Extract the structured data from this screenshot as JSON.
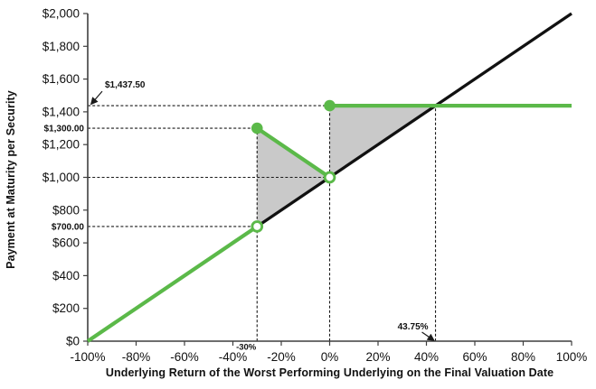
{
  "chart_data": {
    "type": "line",
    "xlabel": "Underlying Return of the Worst Performing Underlying on the Final Valuation Date",
    "ylabel": "Payment at Maturity per Security",
    "xlim": [
      -100,
      100
    ],
    "ylim": [
      0,
      2000
    ],
    "grid": false,
    "legend": "none",
    "colors": {
      "payoff_green": "#5BB949",
      "reference_black": "#111111",
      "shaded_gray": "#C9C9C9",
      "axis": "#3f3f3f",
      "dashed": "#1a1a1a",
      "text": "#111111"
    },
    "x_ticks": [
      {
        "v": -100,
        "label": "-100%"
      },
      {
        "v": -80,
        "label": "-80%"
      },
      {
        "v": -60,
        "label": "-60%"
      },
      {
        "v": -40,
        "label": "-40%"
      },
      {
        "v": -20,
        "label": "-20%"
      },
      {
        "v": 0,
        "label": "0%"
      },
      {
        "v": 20,
        "label": "20%"
      },
      {
        "v": 40,
        "label": "40%"
      },
      {
        "v": 60,
        "label": "60%"
      },
      {
        "v": 80,
        "label": "80%"
      },
      {
        "v": 100,
        "label": "100%"
      }
    ],
    "y_ticks": [
      {
        "v": 0,
        "label": "$0"
      },
      {
        "v": 200,
        "label": "$200"
      },
      {
        "v": 400,
        "label": "$400"
      },
      {
        "v": 600,
        "label": "$600"
      },
      {
        "v": 800,
        "label": "$800"
      },
      {
        "v": 1000,
        "label": "$1,000"
      },
      {
        "v": 1200,
        "label": "$1,200"
      },
      {
        "v": 1400,
        "label": "$1,400"
      },
      {
        "v": 1600,
        "label": "$1,600"
      },
      {
        "v": 1800,
        "label": "$1,800"
      },
      {
        "v": 2000,
        "label": "$2,000"
      }
    ],
    "shaded_regions": [
      {
        "name": "loss-buffer-triangle",
        "points": [
          [
            -30,
            700
          ],
          [
            -30,
            1300
          ],
          [
            0,
            1000
          ]
        ]
      },
      {
        "name": "capped-upside-triangle",
        "points": [
          [
            0,
            1000
          ],
          [
            0,
            1437.5
          ],
          [
            43.75,
            1437.5
          ]
        ]
      }
    ],
    "dashed_guides": [
      {
        "from": [
          -100,
          1437.5
        ],
        "to": [
          43.75,
          1437.5
        ]
      },
      {
        "from": [
          -100,
          1300
        ],
        "to": [
          -30,
          1300
        ]
      },
      {
        "from": [
          -100,
          1000
        ],
        "to": [
          0,
          1000
        ]
      },
      {
        "from": [
          -100,
          700
        ],
        "to": [
          -30,
          700
        ]
      },
      {
        "from": [
          -30,
          0
        ],
        "to": [
          -30,
          1300
        ]
      },
      {
        "from": [
          0,
          0
        ],
        "to": [
          0,
          1437.5
        ]
      },
      {
        "from": [
          43.75,
          0
        ],
        "to": [
          43.75,
          1437.5
        ]
      }
    ],
    "series": [
      {
        "name": "Underlying return 1:1 reference line",
        "color_key": "reference_black",
        "width": 3.3,
        "segments": [
          {
            "points": [
              [
                -100,
                0
              ],
              [
                100,
                2000
              ]
            ]
          }
        ]
      },
      {
        "name": "Payment at Maturity payoff line",
        "color_key": "payoff_green",
        "width": 4.2,
        "segments": [
          {
            "points": [
              [
                -100,
                0
              ],
              [
                -30,
                700
              ]
            ]
          },
          {
            "points": [
              [
                -30,
                1300
              ],
              [
                0,
                1000
              ]
            ]
          },
          {
            "points": [
              [
                0,
                1437.5
              ],
              [
                100,
                1437.5
              ]
            ]
          }
        ]
      }
    ],
    "markers": [
      {
        "x": -30,
        "y": 700,
        "style": "open"
      },
      {
        "x": 0,
        "y": 1000,
        "style": "open"
      },
      {
        "x": -30,
        "y": 1300,
        "style": "filled"
      },
      {
        "x": 0,
        "y": 1437.5,
        "style": "filled"
      }
    ],
    "annotations": [
      {
        "text": "$1,437.50",
        "target": [
          -100,
          1437.5
        ],
        "placement": "above-right-arrow"
      },
      {
        "text": "$1,300.00",
        "target": [
          -100,
          1300
        ],
        "placement": "left-of-axis"
      },
      {
        "text": "$700.00",
        "target": [
          -100,
          700
        ],
        "placement": "left-of-axis"
      },
      {
        "text": "-30%",
        "target": [
          -30,
          0
        ],
        "placement": "below-axis"
      },
      {
        "text": "43.75%",
        "target": [
          43.75,
          0
        ],
        "placement": "above-axis-arrow"
      }
    ]
  }
}
